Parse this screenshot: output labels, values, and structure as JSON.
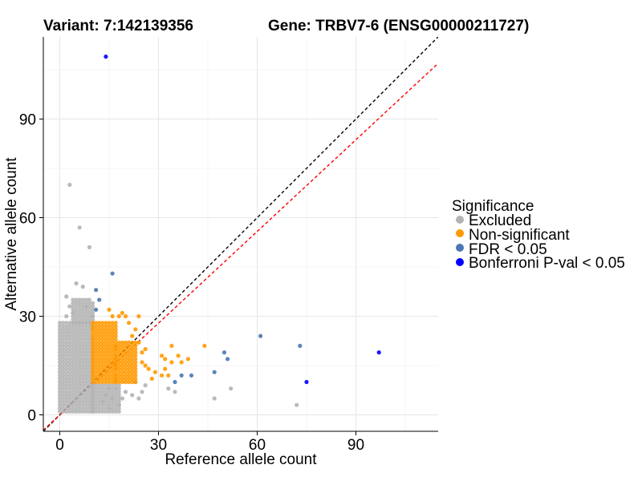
{
  "chart_data": {
    "type": "scatter",
    "title_left": "Variant: 7:142139356",
    "title_right": "Gene: TRBV7-6 (ENSG00000211727)",
    "xlabel": "Reference allele count",
    "ylabel": "Alternative allele count",
    "xlim": [
      -5,
      115
    ],
    "ylim": [
      -5,
      115
    ],
    "x_ticks": [
      0,
      30,
      60,
      90
    ],
    "y_ticks": [
      0,
      30,
      60,
      90
    ],
    "x_tick_labels": [
      "0",
      "30",
      "60",
      "90"
    ],
    "y_tick_labels": [
      "0",
      "30",
      "60",
      "90"
    ],
    "grid": true,
    "reference_lines": [
      {
        "name": "identity",
        "slope": 1,
        "intercept": 0,
        "color": "#000000",
        "style": "dashed"
      },
      {
        "name": "fit",
        "slope": 0.93,
        "intercept": 0,
        "color": "#ff0000",
        "style": "dashed"
      }
    ],
    "legend": {
      "title": "Significance",
      "placement": "right",
      "entries": [
        {
          "label": "Excluded",
          "color": "#b3b3b3"
        },
        {
          "label": "Non-significant",
          "color": "#ff9900"
        },
        {
          "label": "FDR < 0.05",
          "color": "#4a77b4"
        },
        {
          "label": "Bonferroni P-val < 0.05",
          "color": "#0000ff"
        }
      ]
    },
    "series": [
      {
        "name": "Excluded",
        "color": "#b3b3b3",
        "clusters": [
          {
            "x_range": [
              0,
              10
            ],
            "y_range": [
              1,
              28
            ]
          },
          {
            "x_range": [
              10,
              18
            ],
            "y_range": [
              1,
              9
            ]
          },
          {
            "x_range": [
              4,
              10
            ],
            "y_range": [
              28,
              35
            ]
          }
        ],
        "points": [
          [
            3,
            70
          ],
          [
            6,
            57
          ],
          [
            9,
            51
          ],
          [
            5,
            40
          ],
          [
            7,
            39
          ],
          [
            2,
            36
          ],
          [
            3,
            33
          ],
          [
            4,
            31
          ],
          [
            2,
            30
          ],
          [
            8,
            33
          ],
          [
            10,
            30
          ],
          [
            15,
            8
          ],
          [
            17,
            8
          ],
          [
            20,
            7
          ],
          [
            22,
            6
          ],
          [
            19,
            5
          ],
          [
            24,
            5
          ],
          [
            25,
            7
          ],
          [
            26,
            9
          ],
          [
            23,
            10
          ],
          [
            33,
            8
          ],
          [
            35,
            7
          ],
          [
            47,
            5
          ],
          [
            52,
            8
          ],
          [
            72,
            3
          ],
          [
            13,
            4
          ],
          [
            15,
            2
          ],
          [
            18,
            3
          ],
          [
            14,
            6
          ],
          [
            16,
            5
          ]
        ]
      },
      {
        "name": "Non-significant",
        "color": "#ff9900",
        "clusters": [
          {
            "x_range": [
              10,
              17
            ],
            "y_range": [
              10,
              28
            ]
          },
          {
            "x_range": [
              17,
              23
            ],
            "y_range": [
              10,
              22
            ]
          }
        ],
        "points": [
          [
            16,
            30
          ],
          [
            18,
            30
          ],
          [
            20,
            30
          ],
          [
            21,
            28
          ],
          [
            19,
            31
          ],
          [
            15,
            32
          ],
          [
            24,
            30
          ],
          [
            25,
            19
          ],
          [
            25,
            16
          ],
          [
            26,
            15
          ],
          [
            27,
            14
          ],
          [
            29,
            13
          ],
          [
            31,
            18
          ],
          [
            32,
            17
          ],
          [
            32,
            14
          ],
          [
            34,
            16
          ],
          [
            36,
            18
          ],
          [
            37,
            16
          ],
          [
            39,
            17
          ],
          [
            34,
            21
          ],
          [
            44,
            21
          ],
          [
            33,
            12
          ],
          [
            31,
            12
          ],
          [
            28,
            11
          ],
          [
            22,
            24
          ],
          [
            23,
            26
          ],
          [
            24,
            22
          ],
          [
            26,
            20
          ]
        ]
      },
      {
        "name": "FDR < 0.05",
        "color": "#4a77b4",
        "points": [
          [
            16,
            43
          ],
          [
            11,
            38
          ],
          [
            12,
            35
          ],
          [
            11,
            32
          ],
          [
            61,
            24
          ],
          [
            73,
            21
          ],
          [
            50,
            19
          ],
          [
            51,
            17
          ],
          [
            37,
            12
          ],
          [
            40,
            12
          ],
          [
            35,
            10
          ],
          [
            47,
            13
          ]
        ]
      },
      {
        "name": "Bonferroni P-val < 0.05",
        "color": "#0000ff",
        "points": [
          [
            14,
            109
          ],
          [
            97,
            19
          ],
          [
            75,
            10
          ]
        ]
      }
    ]
  }
}
